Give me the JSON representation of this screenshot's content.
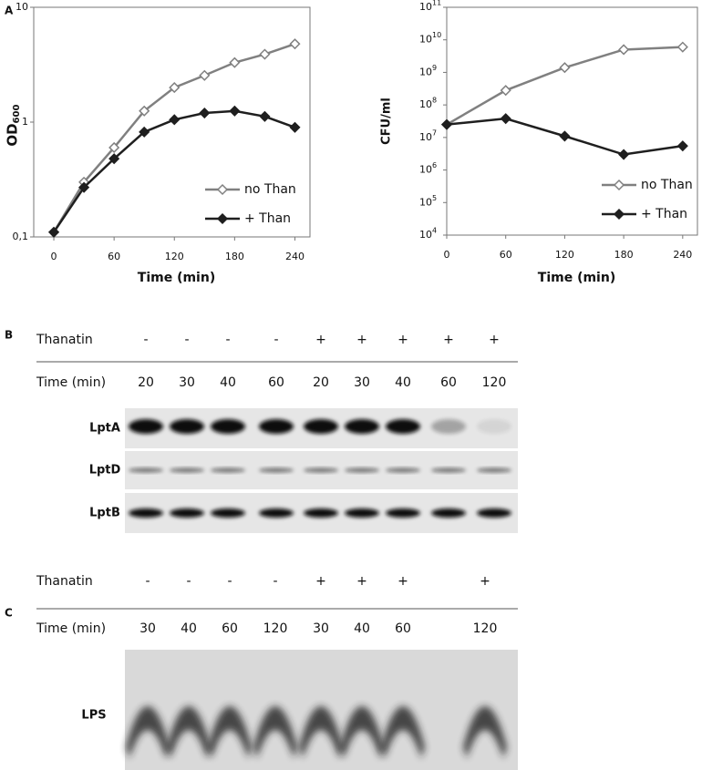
{
  "panel_labels": [
    "A",
    "B",
    "C"
  ],
  "chart_data": [
    {
      "type": "line",
      "ylabel": "OD",
      "ylabel_subscript": "600",
      "xlabel": "Time (min)",
      "x": [
        0,
        30,
        60,
        90,
        120,
        150,
        180,
        210,
        240
      ],
      "series": [
        {
          "name": "no Than",
          "color": "#808080",
          "marker": "open-diamond",
          "values": [
            0.11,
            0.3,
            0.6,
            1.25,
            2.0,
            2.55,
            3.3,
            3.9,
            4.8
          ]
        },
        {
          "name": "+ Than",
          "color": "#1f1f1f",
          "marker": "filled-diamond",
          "values": [
            0.11,
            0.27,
            0.48,
            0.82,
            1.05,
            1.2,
            1.25,
            1.12,
            0.9
          ]
        }
      ],
      "xlim": [
        -20,
        255
      ],
      "xticks": [
        0,
        60,
        120,
        180,
        240
      ],
      "ylim": [
        0.1,
        10
      ],
      "yscale": "log",
      "yticks": [
        {
          "value": 0.1,
          "label": "0,1"
        },
        1,
        10
      ],
      "legend": "lower right"
    },
    {
      "type": "line",
      "ylabel": "CFU/ml",
      "xlabel": "Time (min)",
      "x": [
        0,
        60,
        120,
        180,
        240
      ],
      "series": [
        {
          "name": "no Than",
          "color": "#808080",
          "marker": "open-diamond",
          "values": [
            25000000,
            280000000,
            1400000000,
            5000000000,
            6000000000
          ]
        },
        {
          "name": "+ Than",
          "color": "#1f1f1f",
          "marker": "filled-diamond",
          "values": [
            25000000,
            38000000,
            11000000,
            3000000,
            5500000
          ]
        }
      ],
      "xlim": [
        0,
        255
      ],
      "xticks": [
        0,
        60,
        120,
        180,
        240
      ],
      "ylim": [
        10000,
        100000000000
      ],
      "yscale": "log",
      "yticks": [
        {
          "value": 10000,
          "label": "10",
          "exponent": "4"
        },
        {
          "value": 100000,
          "label": "10",
          "exponent": "5"
        },
        {
          "value": 1000000,
          "label": "10",
          "exponent": "6"
        },
        {
          "value": 10000000,
          "label": "10",
          "exponent": "7"
        },
        {
          "value": 100000000,
          "label": "10",
          "exponent": "8"
        },
        {
          "value": 1000000000,
          "label": "10",
          "exponent": "9"
        },
        {
          "value": 10000000000,
          "label": "10",
          "exponent": "10"
        },
        {
          "value": 100000000000,
          "label": "10",
          "exponent": "11"
        }
      ],
      "legend": "lower right"
    }
  ],
  "blot_b": {
    "row_labels": [
      "Thanatin",
      "Time (min)"
    ],
    "thanatin": [
      "-",
      "-",
      "-",
      "-",
      "+",
      "+",
      "+",
      "+",
      "+"
    ],
    "time": [
      "20",
      "30",
      "40",
      "60",
      "20",
      "30",
      "40",
      "60",
      "120"
    ],
    "lanes": [
      "LptA",
      "LptD",
      "LptB"
    ]
  },
  "blot_c": {
    "row_labels": [
      "Thanatin",
      "Time (min)"
    ],
    "thanatin": [
      "-",
      "-",
      "-",
      "-",
      "+",
      "+",
      "+",
      "+"
    ],
    "time": [
      "30",
      "40",
      "60",
      "120",
      "30",
      "40",
      "60",
      "120"
    ],
    "lanes": [
      "LPS"
    ]
  }
}
